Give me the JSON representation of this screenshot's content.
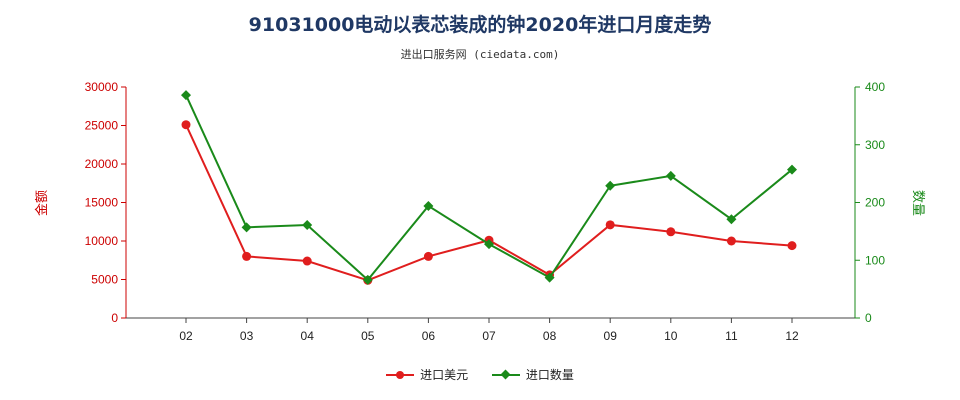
{
  "title": "91031000电动以表芯装成的钟2020年进口月度走势",
  "subtitle": "进出口服务网 (ciedata.com)",
  "colors": {
    "series1": "#e01e1e",
    "series2": "#1a8a1a",
    "left_axis": "#cc0000",
    "right_axis": "#1a8a1a"
  },
  "chart_data": {
    "type": "line",
    "title": "91031000电动以表芯装成的钟2020年进口月度走势",
    "categories": [
      "02",
      "03",
      "04",
      "05",
      "06",
      "07",
      "08",
      "09",
      "10",
      "11",
      "12"
    ],
    "ylabel_left": "金额",
    "ylabel_right": "数量",
    "ylim_left": [
      0,
      30000
    ],
    "ylim_right": [
      0,
      400
    ],
    "yticks_left": [
      "0",
      "5000",
      "10000",
      "15000",
      "20000",
      "25000",
      "30000"
    ],
    "yticks_right": [
      "0",
      "100",
      "200",
      "300",
      "400"
    ],
    "legend_position": "bottom",
    "series": [
      {
        "name": "进口美元",
        "axis": "left",
        "values": [
          25100,
          8000,
          7400,
          4900,
          8000,
          10100,
          5600,
          12100,
          11200,
          10000,
          9400
        ]
      },
      {
        "name": "进口数量",
        "axis": "right",
        "values": [
          386,
          157,
          161,
          66,
          194,
          128,
          70,
          229,
          246,
          171,
          257
        ]
      }
    ]
  }
}
